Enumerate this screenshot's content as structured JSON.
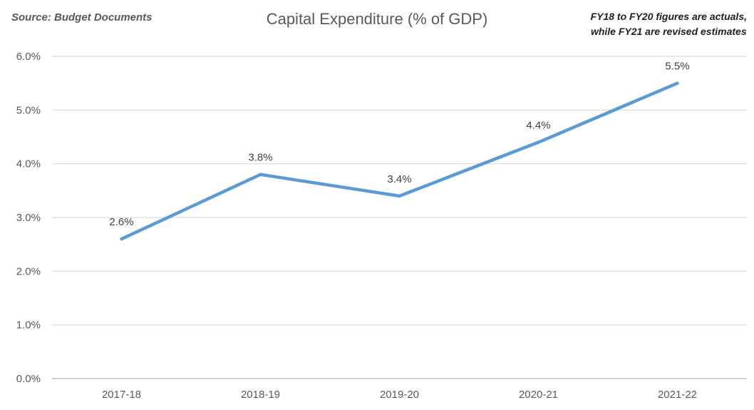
{
  "header": {
    "source": "Source: Budget Documents",
    "title": "Capital Expenditure (% of GDP)",
    "note_line1": "FY18 to FY20 figures are actuals,",
    "note_line2": "while FY21 are revised estimates"
  },
  "chart_data": {
    "type": "line",
    "title": "Capital Expenditure (% of GDP)",
    "categories": [
      "2017-18",
      "2018-19",
      "2019-20",
      "2020-21",
      "2021-22"
    ],
    "values": [
      2.6,
      3.8,
      3.4,
      4.4,
      5.5
    ],
    "data_labels": [
      "2.6%",
      "3.8%",
      "3.4%",
      "4.4%",
      "5.5%"
    ],
    "xlabel": "",
    "ylabel": "",
    "ylim": [
      0,
      6
    ],
    "y_ticks": [
      0,
      1,
      2,
      3,
      4,
      5,
      6
    ],
    "y_tick_labels": [
      "0.0%",
      "1.0%",
      "2.0%",
      "3.0%",
      "4.0%",
      "5.0%",
      "6.0%"
    ],
    "grid": true,
    "legend": false,
    "colors": {
      "line": "#5B9BD5",
      "gridline": "#D9D9D9",
      "axis_line": "#BFBFBF",
      "tick_label": "#595959",
      "data_label": "#404040"
    }
  }
}
